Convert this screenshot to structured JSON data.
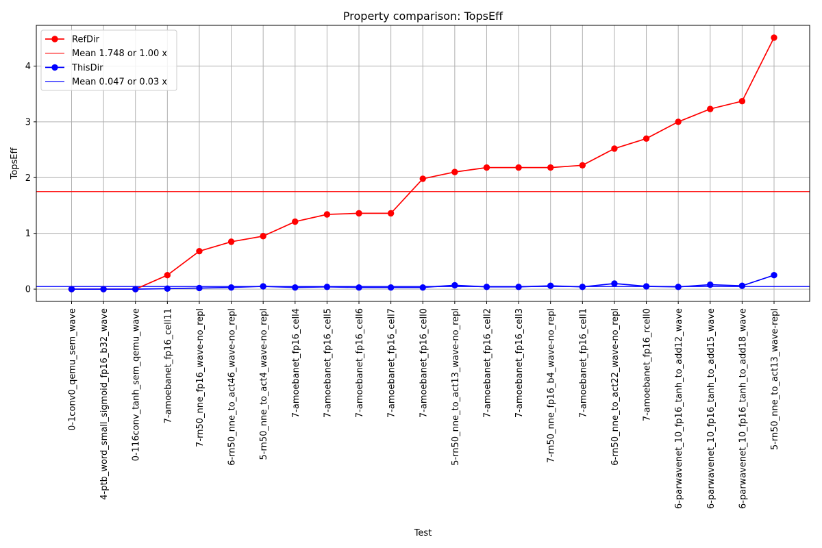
{
  "chart_data": {
    "type": "line",
    "title": "Property comparison:  TopsEff",
    "xlabel": "Test",
    "ylabel": "TopsEff",
    "ylim": [
      -0.22,
      4.73
    ],
    "yticks": [
      0,
      1,
      2,
      3,
      4
    ],
    "grid": true,
    "legend_position": "top-left",
    "categories": [
      "0-1conv0_qemu_sem_wave",
      "4-ptb_word_small_sigmoid_fp16_b32_wave",
      "0-116conv_tanh_sem_qemu_wave",
      "7-amoebanet_fp16_cell11",
      "7-rn50_nne_fp16_wave-no_repl",
      "6-rn50_nne_to_act46_wave-no_repl",
      "5-rn50_nne_to_act4_wave-no_repl",
      "7-amoebanet_fp16_cell4",
      "7-amoebanet_fp16_cell5",
      "7-amoebanet_fp16_cell6",
      "7-amoebanet_fp16_cell7",
      "7-amoebanet_fp16_cell0",
      "5-rn50_nne_to_act13_wave-no_repl",
      "7-amoebanet_fp16_cell2",
      "7-amoebanet_fp16_cell3",
      "7-rn50_nne_fp16_b4_wave-no_repl",
      "7-amoebanet_fp16_cell1",
      "6-rn50_nne_to_act22_wave-no_repl",
      "7-amoebanet_fp16_rcell0",
      "6-parwavenet_10_fp16_tanh_to_add12_wave",
      "6-parwavenet_10_fp16_tanh_to_add15_wave",
      "6-parwavenet_10_fp16_tanh_to_add18_wave",
      "5-rn50_nne_to_act13_wave-repl"
    ],
    "series": [
      {
        "name": "RefDir",
        "color": "#ff0000",
        "values": [
          0.0,
          0.0,
          0.0,
          0.25,
          0.68,
          0.85,
          0.95,
          1.21,
          1.34,
          1.36,
          1.36,
          1.98,
          2.1,
          2.18,
          2.18,
          2.18,
          2.22,
          2.52,
          2.7,
          3.0,
          3.23,
          3.37,
          4.51
        ]
      },
      {
        "name": "ThisDir",
        "color": "#0000ff",
        "values": [
          0.0,
          0.0,
          0.0,
          0.01,
          0.02,
          0.03,
          0.05,
          0.03,
          0.04,
          0.03,
          0.03,
          0.03,
          0.07,
          0.04,
          0.04,
          0.06,
          0.04,
          0.1,
          0.05,
          0.04,
          0.08,
          0.06,
          0.25
        ]
      }
    ],
    "mean_lines": [
      {
        "label": "Mean 1.748 or 1.00 x",
        "value": 1.748,
        "color": "#ff0000"
      },
      {
        "label": "Mean 0.047 or 0.03 x",
        "value": 0.047,
        "color": "#0000ff"
      }
    ],
    "legend": [
      "RefDir",
      "Mean 1.748 or 1.00 x",
      "ThisDir",
      "Mean 0.047 or 0.03 x"
    ]
  }
}
